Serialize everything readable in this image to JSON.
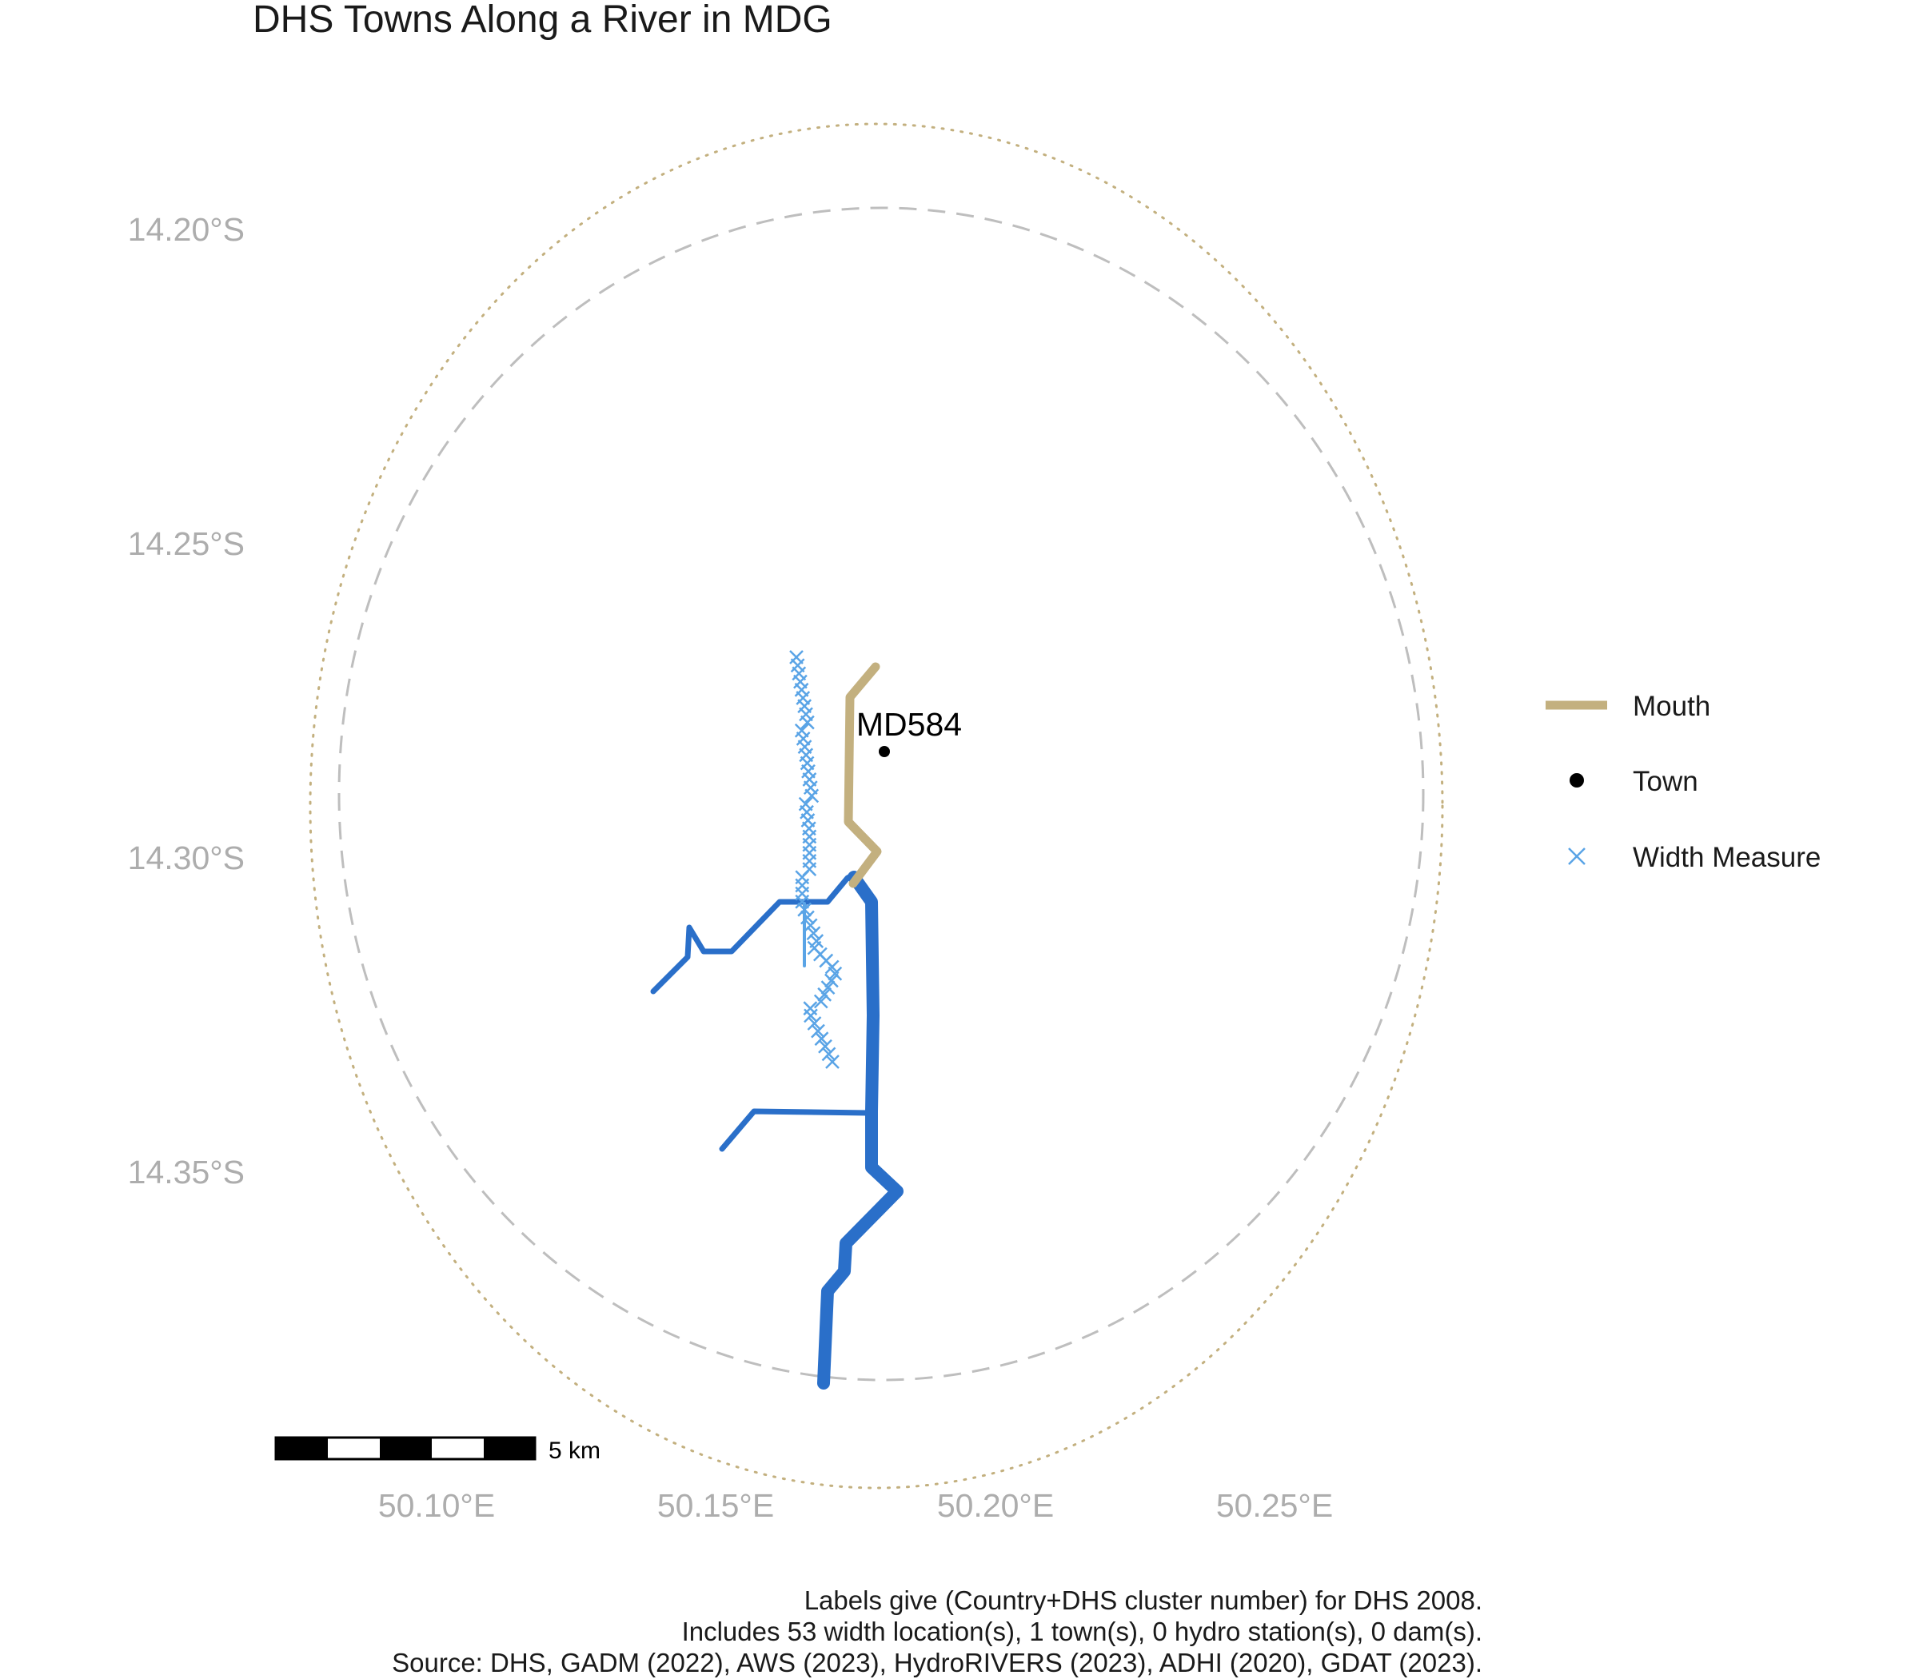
{
  "title": "DHS Towns Along a River in MDG",
  "axes": {
    "y_ticks": [
      "14.20°S",
      "14.25°S",
      "14.30°S",
      "14.35°S"
    ],
    "x_ticks": [
      "50.10°E",
      "50.15°E",
      "50.20°E",
      "50.25°E"
    ]
  },
  "town": {
    "label": "MD584"
  },
  "legend": {
    "items": [
      {
        "label": "Mouth",
        "symbol": "line",
        "color": "#C3B07F"
      },
      {
        "label": "Town",
        "symbol": "point",
        "color": "#000000"
      },
      {
        "label": "Width Measure",
        "symbol": "cross",
        "color": "#5AA4E6"
      }
    ]
  },
  "scale_bar": {
    "label": "5 km"
  },
  "caption": {
    "line1": "Labels give (Country+DHS cluster number) for DHS 2008.",
    "line2": "Includes 53 width location(s), 1 town(s), 0 hydro station(s), 0 dam(s).",
    "line3": "Source: DHS, GADM (2022), AWS (2023), HydroRIVERS (2023), ADHI (2020), GDAT (2023)."
  },
  "colors": {
    "river": "#2A6FC9",
    "mouth": "#C3B07F",
    "width_measure": "#5AA4E6",
    "dashed_circle": "#BEBEBE",
    "dotted_circle": "#C3B07F",
    "axis_text": "#ADADAD"
  }
}
